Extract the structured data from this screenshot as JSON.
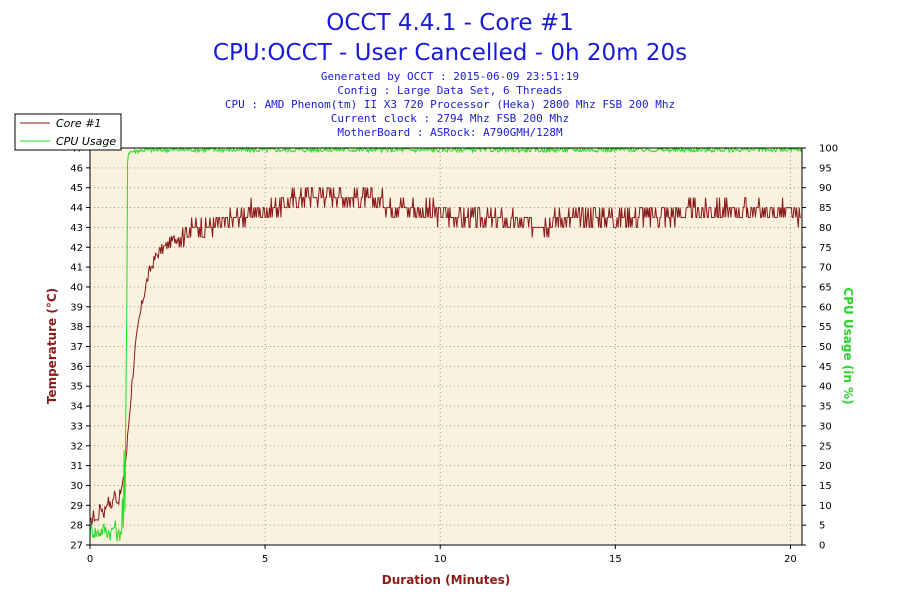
{
  "chart_data": {
    "type": "line",
    "title": "OCCT 4.4.1 - Core #1",
    "subtitle": "CPU:OCCT - User Cancelled - 0h 20m 20s",
    "info_lines": [
      "Generated by OCCT : 2015-06-09 23:51:19",
      "Config : Large Data Set, 6 Threads",
      "CPU : AMD Phenom(tm) II X3 720 Processor (Heka) 2800 Mhz FSB 200 Mhz",
      "Current clock : 2794 Mhz FSB 200 Mhz",
      "MotherBoard : ASRock: A790GMH/128M"
    ],
    "xlabel": "Duration (Minutes)",
    "ylabel_left": "Temperature (°C)",
    "ylabel_right": "CPU Usage (in %)",
    "xlim": [
      0,
      20.33
    ],
    "ylim_left": [
      27,
      47
    ],
    "ylim_right": [
      0,
      100
    ],
    "x_ticks": [
      0,
      5,
      10,
      15,
      20
    ],
    "y_left_ticks": [
      27,
      28,
      29,
      30,
      31,
      32,
      33,
      34,
      35,
      36,
      37,
      38,
      39,
      40,
      41,
      42,
      43,
      44,
      45,
      46,
      47
    ],
    "y_right_ticks": [
      0,
      5,
      10,
      15,
      20,
      25,
      30,
      35,
      40,
      45,
      50,
      55,
      60,
      65,
      70,
      75,
      80,
      85,
      90,
      95,
      100
    ],
    "grid": true,
    "legend_position": "top-left",
    "series": [
      {
        "name": "Core #1",
        "axis": "left",
        "color": "#8b1a1a",
        "points": [
          [
            0,
            28
          ],
          [
            0.1,
            28.5
          ],
          [
            0.2,
            28.2
          ],
          [
            0.3,
            29
          ],
          [
            0.4,
            28.6
          ],
          [
            0.5,
            29.3
          ],
          [
            0.6,
            28.9
          ],
          [
            0.7,
            29.6
          ],
          [
            0.8,
            29.2
          ],
          [
            0.9,
            29.8
          ],
          [
            0.95,
            30.2
          ],
          [
            1.0,
            31
          ],
          [
            1.05,
            31.8
          ],
          [
            1.1,
            33
          ],
          [
            1.2,
            35.2
          ],
          [
            1.3,
            37
          ],
          [
            1.4,
            38.3
          ],
          [
            1.5,
            39.3
          ],
          [
            1.6,
            40.1
          ],
          [
            1.7,
            40.8
          ],
          [
            1.8,
            41.2
          ],
          [
            1.9,
            41.6
          ],
          [
            2.0,
            41.8
          ],
          [
            2.2,
            42.1
          ],
          [
            2.4,
            42.4
          ],
          [
            2.6,
            42.6
          ],
          [
            2.8,
            42.8
          ],
          [
            3.0,
            43
          ],
          [
            3.3,
            43
          ],
          [
            3.6,
            43.1
          ],
          [
            4.0,
            43.3
          ],
          [
            4.3,
            43.6
          ],
          [
            4.7,
            43.8
          ],
          [
            5.2,
            43.9
          ],
          [
            5.6,
            44.2
          ],
          [
            6.0,
            44.5
          ],
          [
            6.5,
            44.7
          ],
          [
            7.0,
            44.7
          ],
          [
            7.5,
            44.5
          ],
          [
            8.0,
            44.4
          ],
          [
            8.5,
            44.2
          ],
          [
            9.0,
            44.0
          ],
          [
            9.5,
            43.8
          ],
          [
            10.0,
            43.7
          ],
          [
            10.5,
            43.6
          ],
          [
            11.0,
            43.5
          ],
          [
            11.5,
            43.3
          ],
          [
            12.0,
            43.3
          ],
          [
            12.5,
            43.2
          ],
          [
            13.0,
            43.2
          ],
          [
            13.5,
            43.4
          ],
          [
            14.0,
            43.5
          ],
          [
            14.5,
            43.6
          ],
          [
            15.0,
            43.5
          ],
          [
            15.5,
            43.6
          ],
          [
            16.0,
            43.6
          ],
          [
            16.5,
            43.6
          ],
          [
            17.0,
            43.8
          ],
          [
            17.5,
            43.8
          ],
          [
            18.0,
            43.8
          ],
          [
            18.5,
            43.8
          ],
          [
            19.0,
            43.8
          ],
          [
            19.5,
            43.8
          ],
          [
            20.0,
            43.8
          ],
          [
            20.3,
            43.4
          ]
        ]
      },
      {
        "name": "CPU Usage",
        "axis": "right",
        "color": "#22dd22",
        "points": [
          [
            0,
            4
          ],
          [
            0.2,
            3
          ],
          [
            0.4,
            4
          ],
          [
            0.6,
            3
          ],
          [
            0.7,
            5
          ],
          [
            0.8,
            2
          ],
          [
            0.9,
            4
          ],
          [
            0.92,
            12
          ],
          [
            0.95,
            5
          ],
          [
            0.97,
            25
          ],
          [
            1.0,
            8
          ],
          [
            1.02,
            30
          ],
          [
            1.05,
            60
          ],
          [
            1.07,
            98
          ],
          [
            1.1,
            99
          ],
          [
            1.5,
            99.5
          ],
          [
            3,
            99.6
          ],
          [
            5,
            99.5
          ],
          [
            7,
            99.6
          ],
          [
            9,
            99.5
          ],
          [
            11,
            99.6
          ],
          [
            13,
            99.5
          ],
          [
            15,
            99.6
          ],
          [
            17,
            99.5
          ],
          [
            19,
            99.6
          ],
          [
            20.33,
            99.5
          ]
        ]
      }
    ]
  }
}
